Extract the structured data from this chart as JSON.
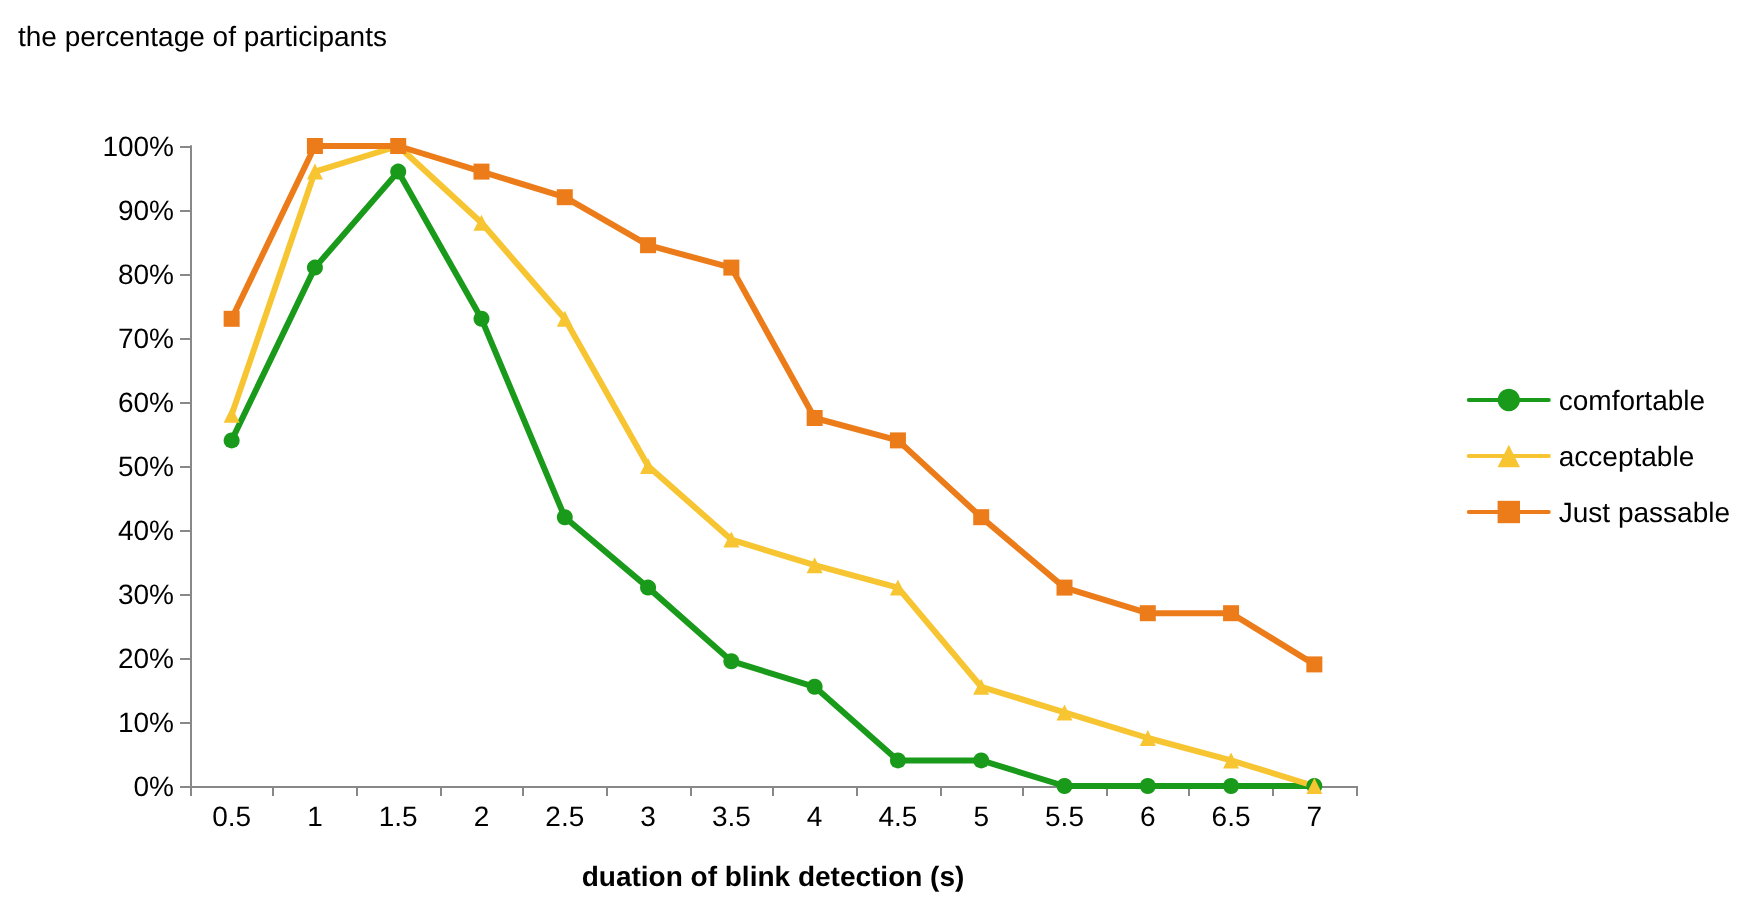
{
  "chart_data": {
    "type": "line",
    "ylabel": "the percentage of participants",
    "xlabel": "duation of blink detection (s)",
    "categories": [
      "0.5",
      "1",
      "1.5",
      "2",
      "2.5",
      "3",
      "3.5",
      "4",
      "4.5",
      "5",
      "5.5",
      "6",
      "6.5",
      "7"
    ],
    "series": [
      {
        "name": "comfortable",
        "color": "#1a9a1a",
        "marker": "circle",
        "values": [
          54,
          81,
          96,
          73,
          42,
          31,
          19.5,
          15.5,
          4,
          4,
          0,
          0,
          0,
          0
        ]
      },
      {
        "name": "acceptable",
        "color": "#f7c531",
        "marker": "triangle",
        "values": [
          58,
          96,
          100,
          88,
          73,
          50,
          38.5,
          34.5,
          31,
          15.5,
          11.5,
          7.5,
          4,
          0
        ]
      },
      {
        "name": "Just passable",
        "color": "#ec7c1a",
        "marker": "square",
        "values": [
          73,
          100,
          100,
          96,
          92,
          84.5,
          81,
          57.5,
          54,
          42,
          31,
          27,
          27,
          19
        ]
      }
    ],
    "ylim": [
      0,
      100
    ],
    "yticks": [
      {
        "value": 0,
        "label": "0%"
      },
      {
        "value": 10,
        "label": "10%"
      },
      {
        "value": 20,
        "label": "20%"
      },
      {
        "value": 30,
        "label": "30%"
      },
      {
        "value": 40,
        "label": "40%"
      },
      {
        "value": 50,
        "label": "50%"
      },
      {
        "value": 60,
        "label": "60%"
      },
      {
        "value": 70,
        "label": "70%"
      },
      {
        "value": 80,
        "label": "80%"
      },
      {
        "value": 90,
        "label": "90%"
      },
      {
        "value": 100,
        "label": "100%"
      }
    ],
    "grid": false,
    "legend": "right",
    "line_style": "solid"
  }
}
